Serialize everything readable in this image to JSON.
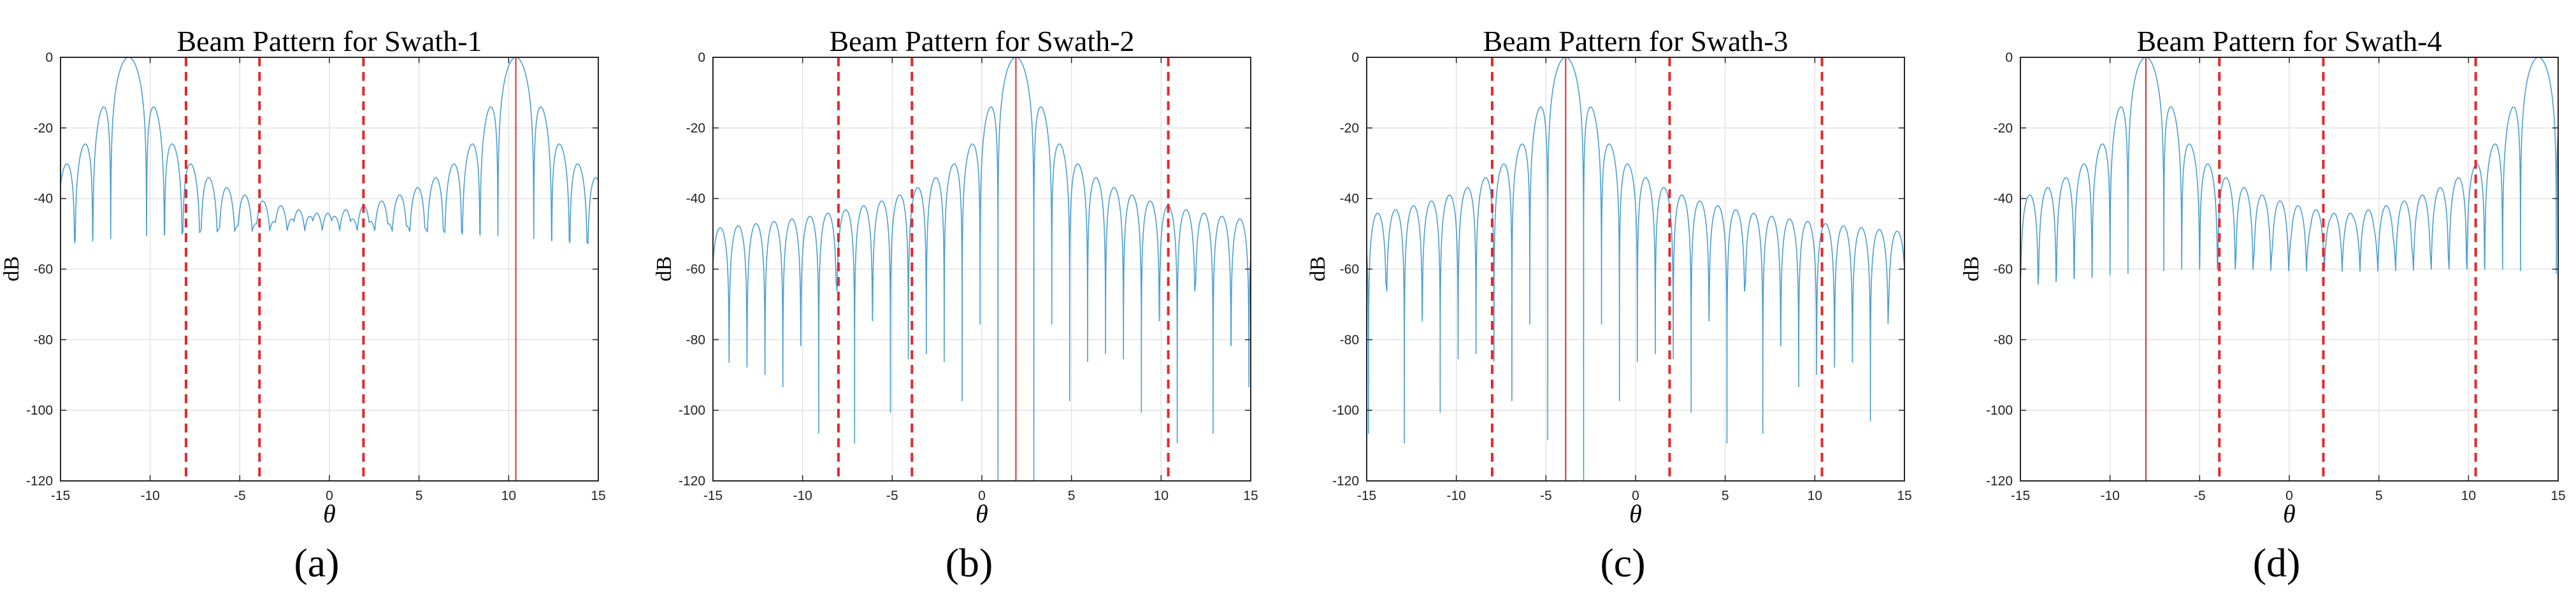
{
  "figure": {
    "theme": {
      "trace_color": "#4a9fd4",
      "marker_color": "#e8262b",
      "axis_color": "#262626",
      "grid_color": "#e3e3e3"
    },
    "panels": [
      {
        "label": "(a)",
        "chart_data": {
          "type": "line",
          "title": "Beam Pattern for Swath-1",
          "xlabel": "θ",
          "ylabel": "dB",
          "xlim": [
            -15,
            15
          ],
          "ylim": [
            -120,
            0
          ],
          "xticks": [
            -15,
            -10,
            -5,
            0,
            5,
            10,
            15
          ],
          "yticks": [
            0,
            -20,
            -40,
            -60,
            -80,
            -100,
            -120
          ],
          "xtick_labels": [
            "-15",
            "-10",
            "-5",
            "0",
            "5",
            "10",
            "15"
          ],
          "ytick_labels": [
            "0",
            "-20",
            "-40",
            "-60",
            "-80",
            "-100",
            "-120"
          ],
          "grid": true,
          "series": [
            {
              "name": "beam pattern",
              "main_lobes": [
                -11.2,
                10.4
              ],
              "sidelobe_level_db": -27,
              "null_spacing_deg": 1.0
            }
          ],
          "markers": [
            {
              "x": -8.0,
              "style": "dashed"
            },
            {
              "x": -3.9,
              "style": "dashed"
            },
            {
              "x": 1.9,
              "style": "dashed"
            },
            {
              "x": 10.4,
              "style": "solid"
            }
          ]
        }
      },
      {
        "label": "(b)",
        "chart_data": {
          "type": "line",
          "title": "Beam Pattern for Swath-2",
          "xlabel": "θ",
          "ylabel": "dB",
          "xlim": [
            -15,
            15
          ],
          "ylim": [
            -120,
            0
          ],
          "xticks": [
            -15,
            -10,
            -5,
            0,
            5,
            10,
            15
          ],
          "yticks": [
            0,
            -20,
            -40,
            -60,
            -80,
            -100,
            -120
          ],
          "xtick_labels": [
            "-15",
            "-10",
            "-5",
            "0",
            "5",
            "10",
            "15"
          ],
          "ytick_labels": [
            "0",
            "-20",
            "-40",
            "-60",
            "-80",
            "-100",
            "-120"
          ],
          "grid": true,
          "series": [
            {
              "name": "beam pattern",
              "main_lobes": [
                1.9
              ],
              "sidelobe_level_db": -27,
              "null_spacing_deg": 1.0
            }
          ],
          "markers": [
            {
              "x": -8.0,
              "style": "dashed"
            },
            {
              "x": -3.9,
              "style": "dashed"
            },
            {
              "x": 1.9,
              "style": "solid"
            },
            {
              "x": 10.4,
              "style": "dashed"
            }
          ]
        }
      },
      {
        "label": "(c)",
        "chart_data": {
          "type": "line",
          "title": "Beam Pattern for Swath-3",
          "xlabel": "θ",
          "ylabel": "dB",
          "xlim": [
            -15,
            15
          ],
          "ylim": [
            -120,
            0
          ],
          "xticks": [
            -15,
            -10,
            -5,
            0,
            5,
            10,
            15
          ],
          "yticks": [
            0,
            -20,
            -40,
            -60,
            -80,
            -100,
            -120
          ],
          "xtick_labels": [
            "-15",
            "-10",
            "-5",
            "0",
            "5",
            "10",
            "15"
          ],
          "ytick_labels": [
            "0",
            "-20",
            "-40",
            "-60",
            "-80",
            "-100",
            "-120"
          ],
          "grid": true,
          "series": [
            {
              "name": "beam pattern",
              "main_lobes": [
                -3.9
              ],
              "sidelobe_level_db": -27,
              "null_spacing_deg": 1.0
            }
          ],
          "markers": [
            {
              "x": -8.0,
              "style": "dashed"
            },
            {
              "x": -3.9,
              "style": "solid"
            },
            {
              "x": 1.9,
              "style": "dashed"
            },
            {
              "x": 10.4,
              "style": "dashed"
            }
          ]
        }
      },
      {
        "label": "(d)",
        "chart_data": {
          "type": "line",
          "title": "Beam Pattern for Swath-4",
          "xlabel": "θ",
          "ylabel": "dB",
          "xlim": [
            -15,
            15
          ],
          "ylim": [
            -120,
            0
          ],
          "xticks": [
            -15,
            -10,
            -5,
            0,
            5,
            10,
            15
          ],
          "yticks": [
            0,
            -20,
            -40,
            -60,
            -80,
            -100,
            -120
          ],
          "xtick_labels": [
            "-15",
            "-10",
            "-5",
            "0",
            "5",
            "10",
            "15"
          ],
          "ytick_labels": [
            "0",
            "-20",
            "-40",
            "-60",
            "-80",
            "-100",
            "-120"
          ],
          "grid": true,
          "series": [
            {
              "name": "beam pattern",
              "main_lobes": [
                -8.0,
                13.9
              ],
              "sidelobe_level_db": -27,
              "null_spacing_deg": 1.0
            }
          ],
          "markers": [
            {
              "x": -8.0,
              "style": "solid"
            },
            {
              "x": -3.9,
              "style": "dashed"
            },
            {
              "x": 1.9,
              "style": "dashed"
            },
            {
              "x": 10.4,
              "style": "dashed"
            }
          ]
        }
      }
    ]
  }
}
